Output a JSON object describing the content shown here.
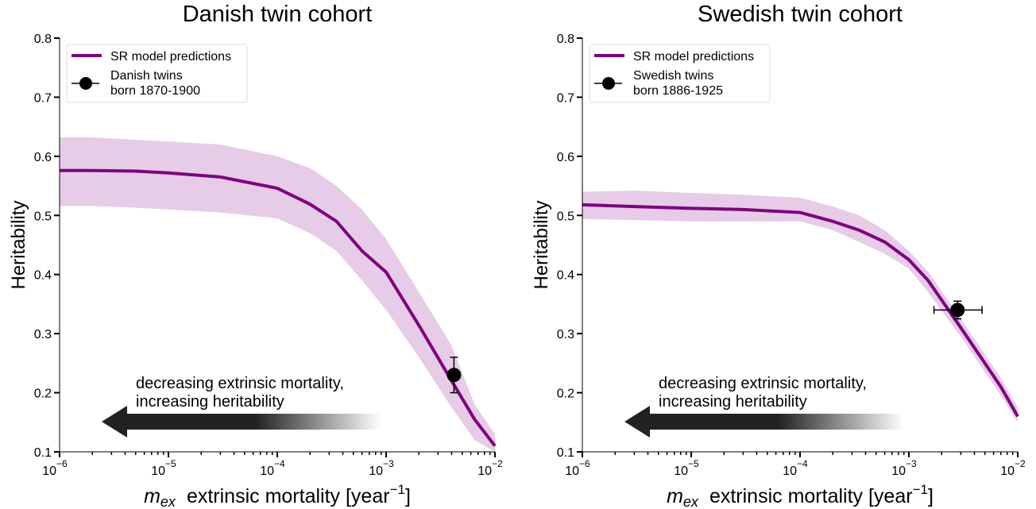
{
  "chart_data": [
    {
      "type": "line",
      "title": "Danish twin cohort",
      "xlabel_math": "m",
      "xlabel_sub": "ex",
      "xlabel": "extrinsic mortality [year",
      "xlabel_sup": "−1",
      "xlabel_end": "]",
      "ylabel": "Heritability",
      "xscale": "log",
      "xlim": [
        1e-06,
        0.01
      ],
      "ylim": [
        0.1,
        0.8
      ],
      "yticks": [
        "0.1",
        "0.2",
        "0.3",
        "0.4",
        "0.5",
        "0.6",
        "0.7",
        "0.8"
      ],
      "xticks": [
        {
          "base": "10",
          "exp": "−6"
        },
        {
          "base": "10",
          "exp": "−5"
        },
        {
          "base": "10",
          "exp": "−4"
        },
        {
          "base": "10",
          "exp": "−3"
        },
        {
          "base": "10",
          "exp": "−2"
        }
      ],
      "legend_position": "top-left",
      "series": [
        {
          "name": "SR model predictions",
          "color": "#800080",
          "x": [
            1e-06,
            2e-06,
            5e-06,
            1e-05,
            3e-05,
            0.0001,
            0.0002,
            0.00035,
            0.0006,
            0.001,
            0.002,
            0.004,
            0.0065,
            0.01
          ],
          "y": [
            0.576,
            0.576,
            0.575,
            0.572,
            0.565,
            0.546,
            0.519,
            0.49,
            0.44,
            0.404,
            0.314,
            0.22,
            0.155,
            0.11
          ],
          "band_upper": [
            0.632,
            0.632,
            0.628,
            0.625,
            0.62,
            0.6,
            0.58,
            0.55,
            0.51,
            0.46,
            0.37,
            0.28,
            0.18,
            0.13
          ],
          "band_lower": [
            0.516,
            0.516,
            0.513,
            0.51,
            0.505,
            0.495,
            0.47,
            0.44,
            0.39,
            0.34,
            0.26,
            0.175,
            0.12,
            0.1
          ],
          "band_color": "#e6cce6"
        }
      ],
      "points": [
        {
          "name": "Danish twins\nborn 1870-1900",
          "label_lines": [
            "Danish twins",
            "born 1870-1900"
          ],
          "x": 0.0042,
          "y": 0.23,
          "xerr": [
            0.0038,
            0.0046
          ],
          "yerr": [
            0.2,
            0.26
          ]
        }
      ],
      "annotation": [
        "decreasing extrinsic mortality,",
        "increasing heritability"
      ]
    },
    {
      "type": "line",
      "title": "Swedish twin cohort",
      "xlabel_math": "m",
      "xlabel_sub": "ex",
      "xlabel": "extrinsic mortality [year",
      "xlabel_sup": "−1",
      "xlabel_end": "]",
      "ylabel": "Heritability",
      "xscale": "log",
      "xlim": [
        1e-06,
        0.01
      ],
      "ylim": [
        0.1,
        0.8
      ],
      "yticks": [
        "0.1",
        "0.2",
        "0.3",
        "0.4",
        "0.5",
        "0.6",
        "0.7",
        "0.8"
      ],
      "xticks": [
        {
          "base": "10",
          "exp": "−6"
        },
        {
          "base": "10",
          "exp": "−5"
        },
        {
          "base": "10",
          "exp": "−4"
        },
        {
          "base": "10",
          "exp": "−3"
        },
        {
          "base": "10",
          "exp": "−2"
        }
      ],
      "legend_position": "top-left",
      "series": [
        {
          "name": "SR model predictions",
          "color": "#800080",
          "x": [
            1e-06,
            3e-06,
            1e-05,
            3e-05,
            0.0001,
            0.0002,
            0.00035,
            0.0006,
            0.001,
            0.0015,
            0.003,
            0.007,
            0.01
          ],
          "y": [
            0.518,
            0.515,
            0.512,
            0.51,
            0.505,
            0.49,
            0.475,
            0.455,
            0.425,
            0.39,
            0.31,
            0.21,
            0.16
          ],
          "band_upper": [
            0.54,
            0.542,
            0.538,
            0.535,
            0.53,
            0.515,
            0.5,
            0.475,
            0.44,
            0.405,
            0.325,
            0.225,
            0.175
          ],
          "band_lower": [
            0.494,
            0.492,
            0.49,
            0.49,
            0.49,
            0.475,
            0.455,
            0.435,
            0.41,
            0.37,
            0.295,
            0.195,
            0.15
          ],
          "band_color": "#e6cce6"
        }
      ],
      "points": [
        {
          "name": "Swedish twins\nborn 1886-1925",
          "label_lines": [
            "Swedish twins",
            "born 1886-1925"
          ],
          "x": 0.0028,
          "y": 0.34,
          "xerr": [
            0.0017,
            0.0047
          ],
          "yerr": [
            0.325,
            0.355
          ]
        }
      ],
      "annotation": [
        "decreasing extrinsic mortality,",
        "increasing heritability"
      ]
    }
  ]
}
